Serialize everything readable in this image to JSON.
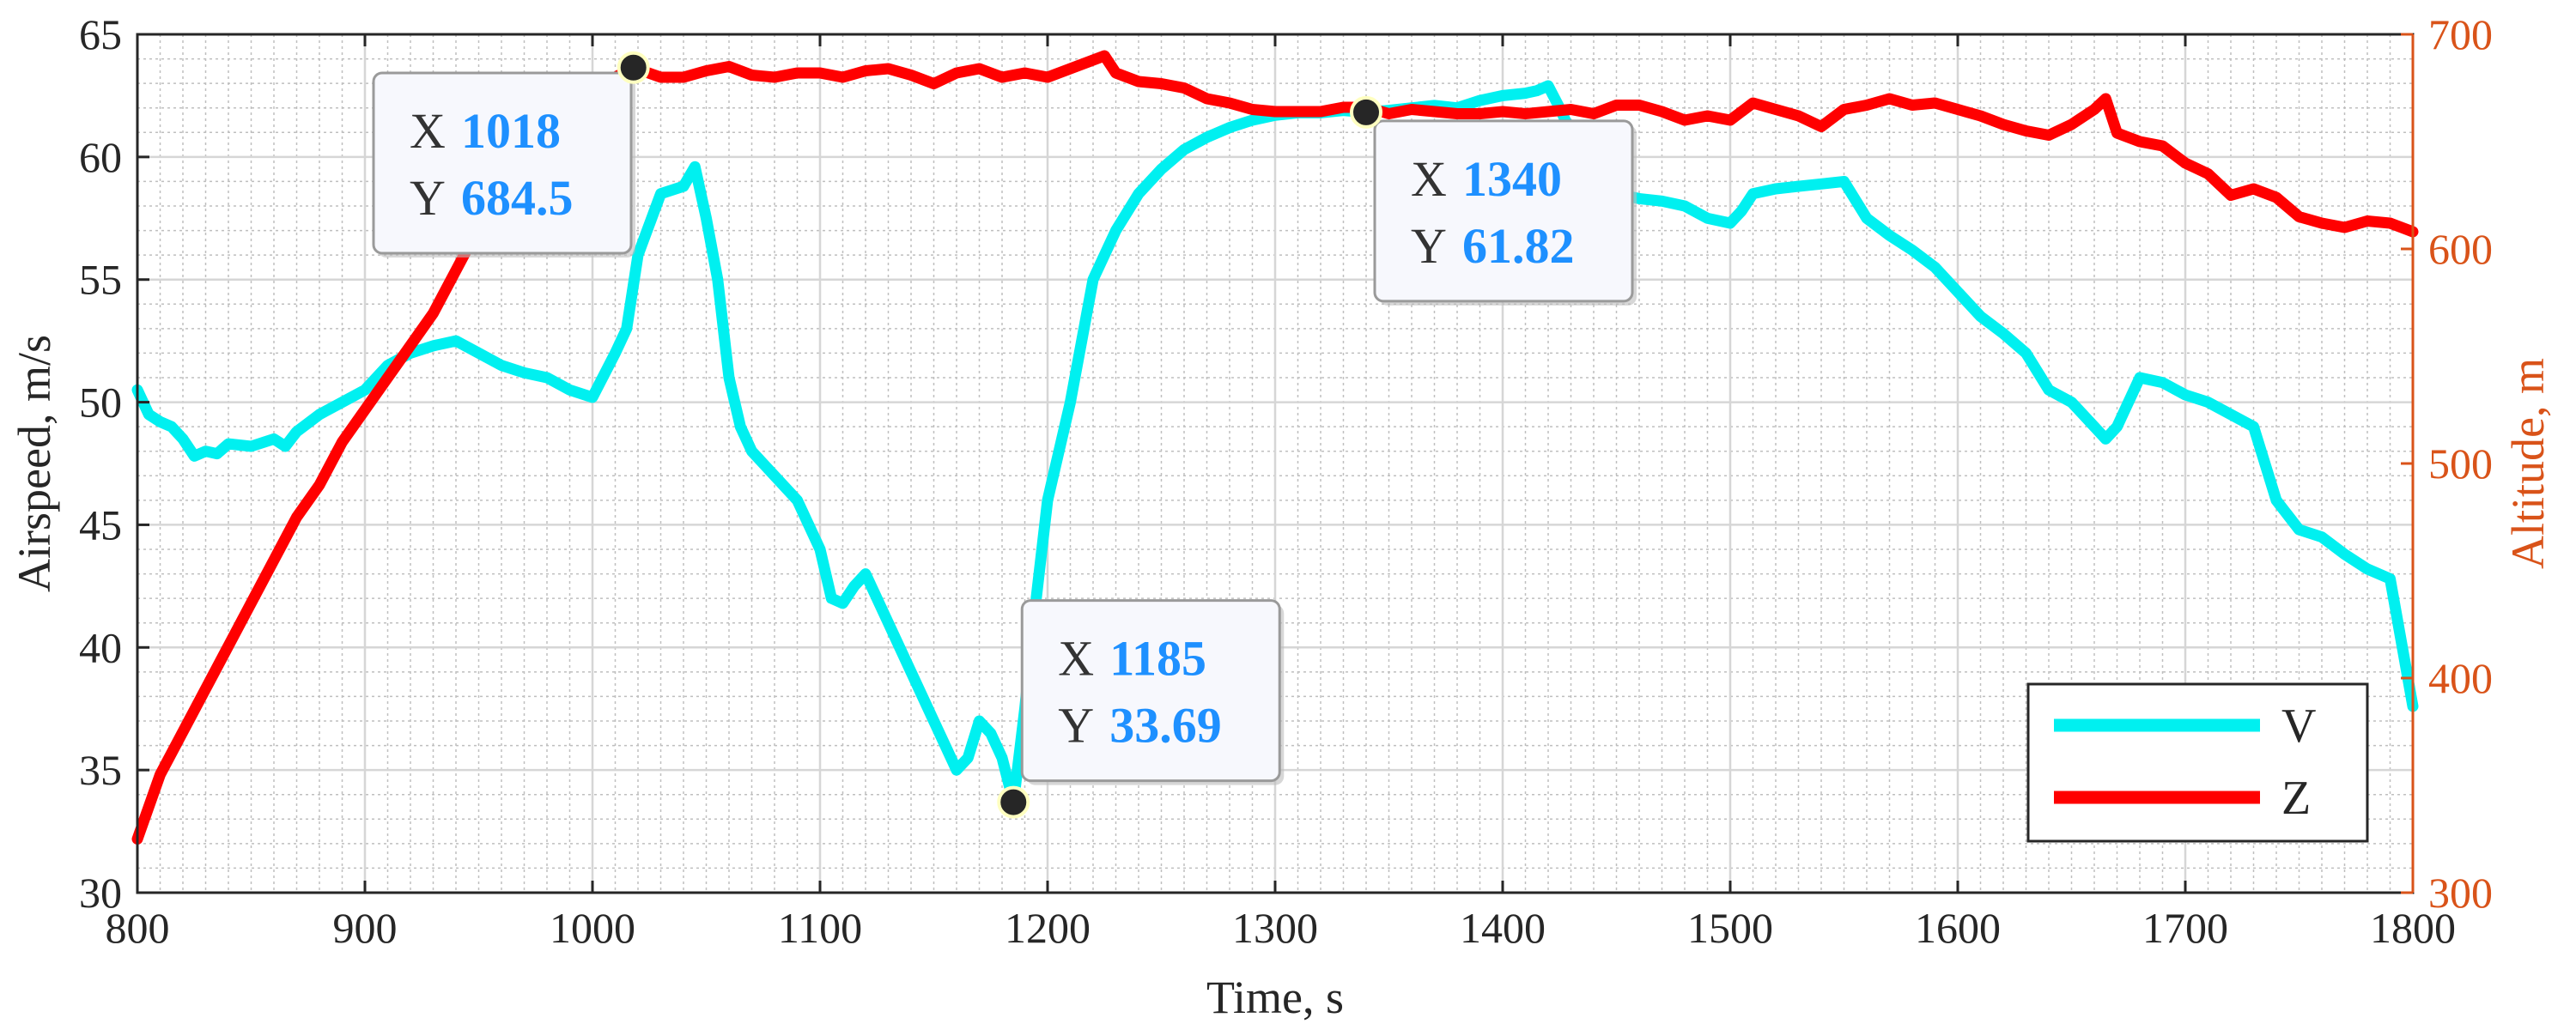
{
  "chart_data": {
    "type": "line",
    "xlabel": "Time, s",
    "ylabel_left": "Airspeed, m/s",
    "ylabel_right": "Altitude, m",
    "xlim": [
      800,
      1800
    ],
    "ylim_left": [
      30,
      65
    ],
    "ylim_right": [
      300,
      700
    ],
    "x_ticks": [
      800,
      900,
      1000,
      1100,
      1200,
      1300,
      1400,
      1500,
      1600,
      1700,
      1800
    ],
    "y_left_ticks": [
      30,
      35,
      40,
      45,
      50,
      55,
      60,
      65
    ],
    "y_right_ticks": [
      300,
      400,
      500,
      600,
      700
    ],
    "grid": "major and minor",
    "legend_position": "bottom-right",
    "colors": {
      "V": "#00f0f0",
      "Z": "#ff0000",
      "right_axis": "#d95319",
      "datatip_value": "#1e90ff"
    },
    "series": [
      {
        "name": "V",
        "axis": "left",
        "x": [
          800,
          805,
          810,
          815,
          820,
          825,
          830,
          835,
          840,
          850,
          860,
          865,
          870,
          880,
          890,
          900,
          910,
          920,
          930,
          940,
          950,
          960,
          970,
          980,
          990,
          1000,
          1010,
          1015,
          1020,
          1030,
          1040,
          1045,
          1050,
          1055,
          1060,
          1065,
          1070,
          1080,
          1090,
          1100,
          1105,
          1110,
          1115,
          1120,
          1130,
          1140,
          1150,
          1155,
          1160,
          1165,
          1170,
          1175,
          1180,
          1185,
          1190,
          1195,
          1200,
          1210,
          1220,
          1230,
          1240,
          1250,
          1260,
          1270,
          1280,
          1290,
          1300,
          1310,
          1320,
          1330,
          1340,
          1350,
          1360,
          1370,
          1380,
          1390,
          1400,
          1410,
          1415,
          1420,
          1425,
          1430,
          1440,
          1450,
          1460,
          1470,
          1480,
          1490,
          1500,
          1505,
          1510,
          1520,
          1530,
          1540,
          1550,
          1560,
          1570,
          1580,
          1590,
          1600,
          1610,
          1620,
          1630,
          1640,
          1650,
          1660,
          1665,
          1670,
          1680,
          1690,
          1700,
          1710,
          1720,
          1730,
          1740,
          1750,
          1760,
          1770,
          1780,
          1790,
          1800
        ],
        "values": [
          50.5,
          49.5,
          49.2,
          49.0,
          48.5,
          47.8,
          48.0,
          47.9,
          48.3,
          48.2,
          48.5,
          48.2,
          48.8,
          49.5,
          50.0,
          50.5,
          51.5,
          52.0,
          52.3,
          52.5,
          52.0,
          51.5,
          51.2,
          51.0,
          50.5,
          50.2,
          52.0,
          53.0,
          56.0,
          58.5,
          58.8,
          59.6,
          57.5,
          55.0,
          51.0,
          49.0,
          48.0,
          47.0,
          46.0,
          44.0,
          42.0,
          41.8,
          42.5,
          43.0,
          41.0,
          39.0,
          37.0,
          36.0,
          35.0,
          35.5,
          37.0,
          36.5,
          35.5,
          33.69,
          37.5,
          42.0,
          46.0,
          50.0,
          55.0,
          57.0,
          58.5,
          59.5,
          60.3,
          60.8,
          61.2,
          61.5,
          61.7,
          61.8,
          61.8,
          61.9,
          61.82,
          61.9,
          62.0,
          62.1,
          62.0,
          62.3,
          62.5,
          62.6,
          62.7,
          62.9,
          62.0,
          61.0,
          60.0,
          58.5,
          58.3,
          58.2,
          58.0,
          57.5,
          57.3,
          57.8,
          58.5,
          58.7,
          58.8,
          58.9,
          59.0,
          57.5,
          56.8,
          56.2,
          55.5,
          54.5,
          53.5,
          52.8,
          52.0,
          50.5,
          50.0,
          49.0,
          48.5,
          49.0,
          51.0,
          50.8,
          50.3,
          50.0,
          49.5,
          49.0,
          46.0,
          44.8,
          44.5,
          43.8,
          43.2,
          42.8,
          37.6
        ]
      },
      {
        "name": "Z",
        "axis": "right",
        "x": [
          800,
          810,
          820,
          830,
          840,
          850,
          860,
          870,
          880,
          890,
          900,
          910,
          920,
          930,
          940,
          950,
          960,
          970,
          980,
          990,
          1000,
          1010,
          1018,
          1030,
          1040,
          1050,
          1060,
          1070,
          1080,
          1090,
          1100,
          1110,
          1120,
          1130,
          1140,
          1150,
          1160,
          1170,
          1180,
          1190,
          1200,
          1210,
          1220,
          1225,
          1230,
          1240,
          1250,
          1260,
          1270,
          1280,
          1290,
          1300,
          1310,
          1320,
          1330,
          1340,
          1350,
          1360,
          1370,
          1380,
          1390,
          1400,
          1410,
          1420,
          1430,
          1440,
          1450,
          1460,
          1470,
          1480,
          1490,
          1500,
          1510,
          1520,
          1530,
          1540,
          1550,
          1560,
          1570,
          1580,
          1590,
          1600,
          1610,
          1620,
          1630,
          1640,
          1650,
          1660,
          1665,
          1670,
          1680,
          1690,
          1700,
          1710,
          1720,
          1730,
          1740,
          1750,
          1760,
          1770,
          1780,
          1790,
          1800
        ],
        "values": [
          325,
          355,
          375,
          395,
          415,
          435,
          455,
          475,
          490,
          510,
          525,
          540,
          555,
          570,
          590,
          610,
          625,
          640,
          655,
          668,
          675,
          680,
          684.5,
          680,
          680,
          683,
          685,
          681,
          680,
          682,
          682,
          680,
          683,
          684,
          681,
          677,
          682,
          684,
          680,
          682,
          680,
          684,
          688,
          690,
          682,
          678,
          677,
          675,
          670,
          668,
          665,
          664,
          664,
          664,
          666,
          666,
          663,
          665,
          664,
          663,
          663,
          664,
          663,
          664,
          665,
          663,
          667,
          667,
          664,
          660,
          662,
          660,
          668,
          665,
          662,
          657,
          665,
          667,
          670,
          667,
          668,
          665,
          662,
          658,
          655,
          653,
          658,
          665,
          670,
          654,
          650,
          648,
          640,
          635,
          625,
          628,
          624,
          615,
          612,
          610,
          613,
          612,
          608
        ]
      }
    ],
    "datatips": [
      {
        "series": "Z",
        "x_label": "X",
        "x_value": "1018",
        "y_label": "Y",
        "y_value": "684.5"
      },
      {
        "series": "V",
        "x_label": "X",
        "x_value": "1185",
        "y_label": "Y",
        "y_value": "33.69"
      },
      {
        "series": "V",
        "x_label": "X",
        "x_value": "1340",
        "y_label": "Y",
        "y_value": "61.82"
      }
    ],
    "legend": [
      {
        "label": "V",
        "series": "V"
      },
      {
        "label": "Z",
        "series": "Z"
      }
    ]
  }
}
